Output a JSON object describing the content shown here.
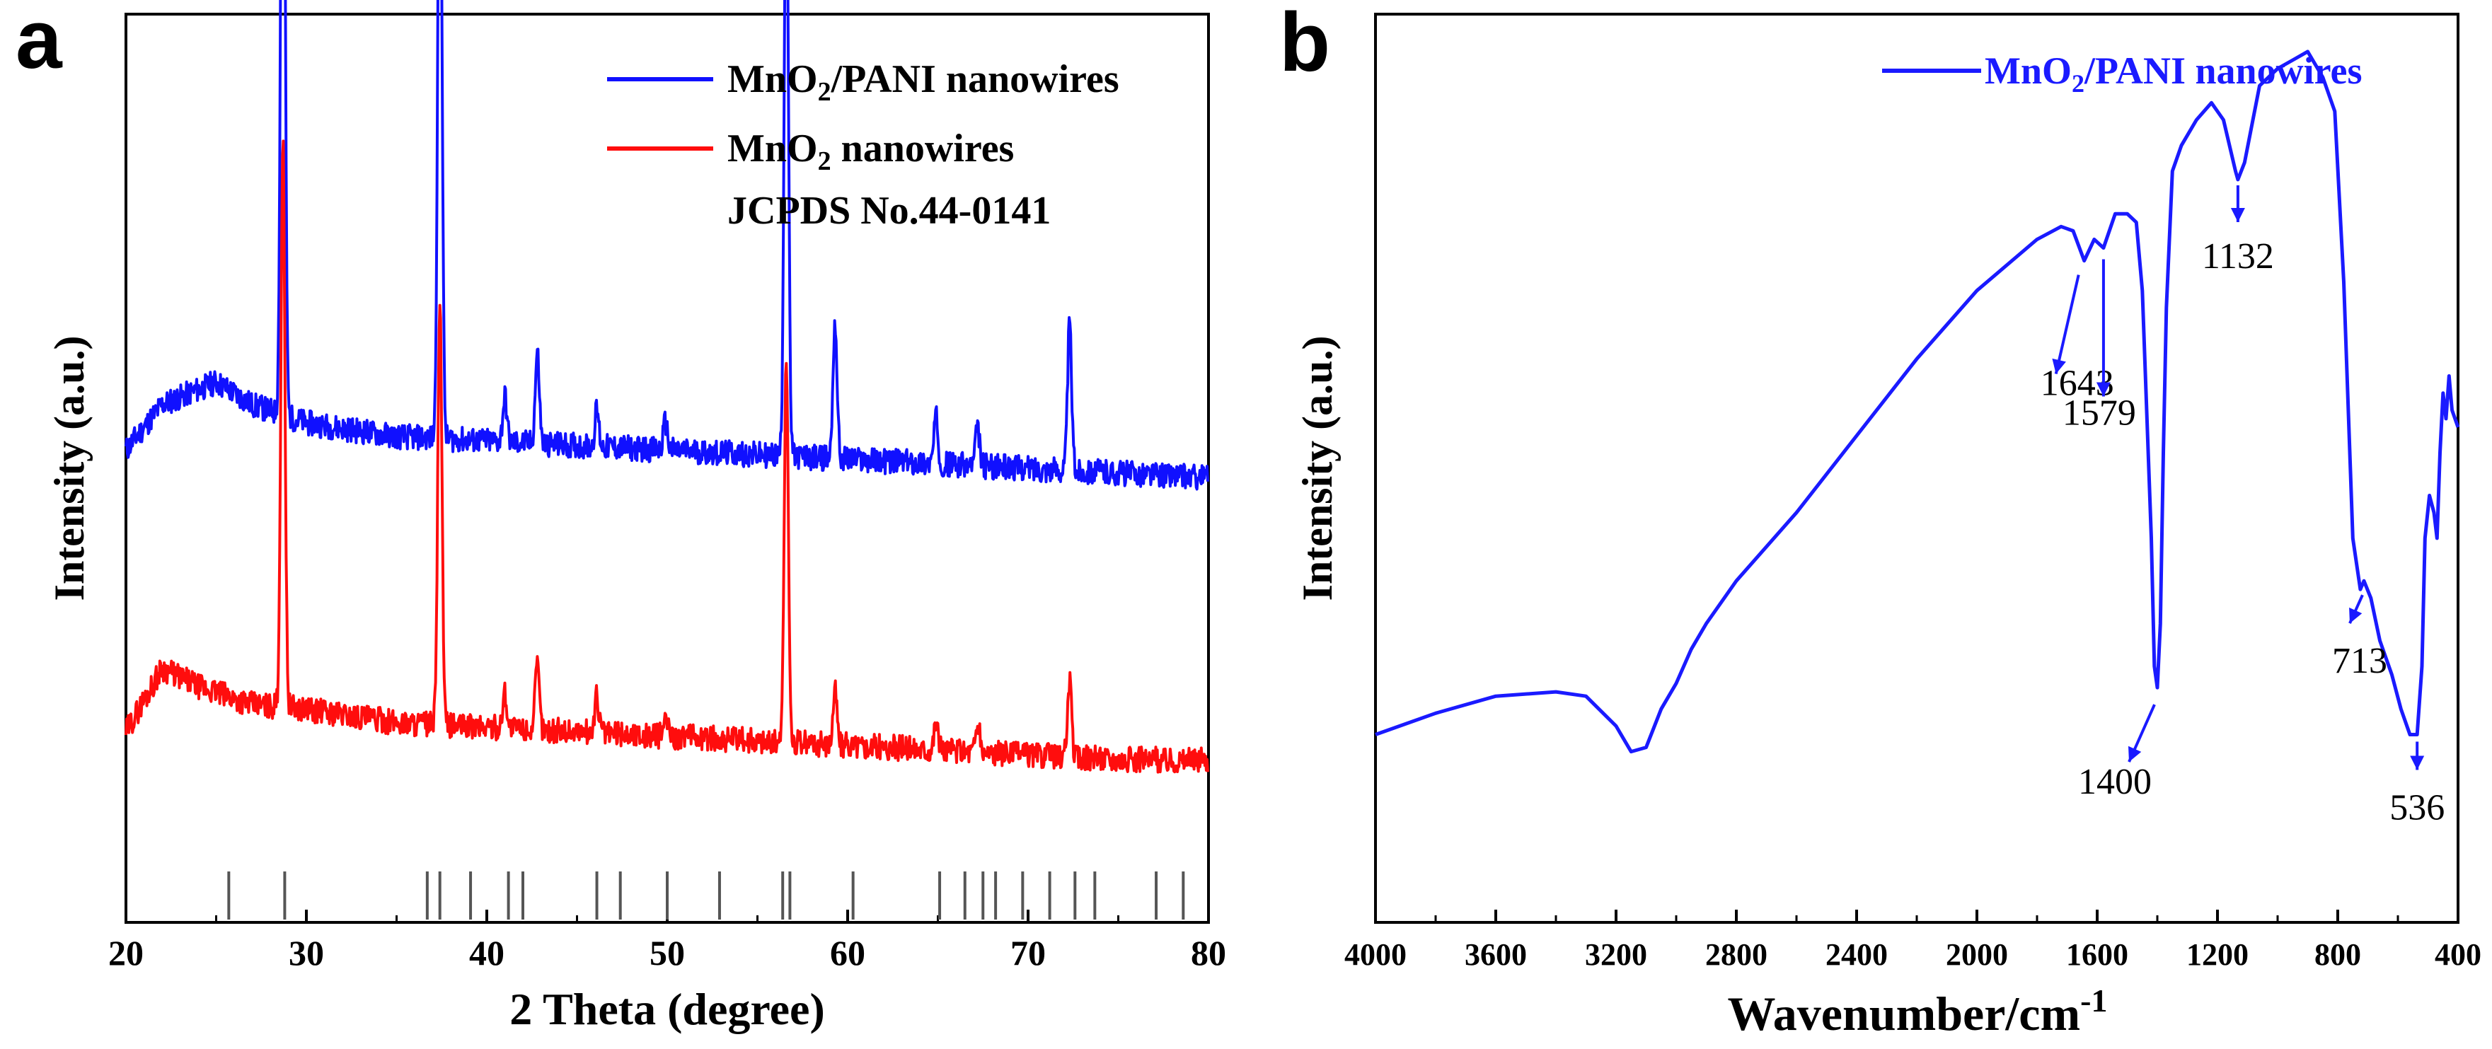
{
  "chart_data": [
    {
      "panel": "a",
      "type": "line",
      "title": "",
      "xlabel": "2 Theta (degree)",
      "ylabel": "Intensity (a.u.)",
      "xlim": [
        20,
        80
      ],
      "ylim": [
        0,
        1
      ],
      "x_ticks": [
        20,
        30,
        40,
        50,
        60,
        70,
        80
      ],
      "grid": false,
      "legend_position": "top-right",
      "series": [
        {
          "name": "MnO2/PANI nanowires",
          "legend_main": "MnO",
          "legend_sub": "2",
          "legend_tail": "/PANI nanowires",
          "color": "#1010ff",
          "baseline": [
            [
              20,
              0.52
            ],
            [
              22,
              0.57
            ],
            [
              25,
              0.595
            ],
            [
              27,
              0.57
            ],
            [
              30,
              0.55
            ],
            [
              35,
              0.535
            ],
            [
              40,
              0.53
            ],
            [
              45,
              0.525
            ],
            [
              50,
              0.52
            ],
            [
              55,
              0.515
            ],
            [
              60,
              0.51
            ],
            [
              65,
              0.505
            ],
            [
              70,
              0.5
            ],
            [
              75,
              0.495
            ],
            [
              80,
              0.49
            ]
          ],
          "peaks": [
            [
              28.7,
              0.96
            ],
            [
              37.4,
              0.78
            ],
            [
              41.0,
              0.05
            ],
            [
              42.8,
              0.1
            ],
            [
              46.1,
              0.04
            ],
            [
              49.9,
              0.03
            ],
            [
              56.6,
              0.7
            ],
            [
              59.3,
              0.15
            ],
            [
              64.9,
              0.05
            ],
            [
              67.2,
              0.04
            ],
            [
              72.3,
              0.16
            ]
          ]
        },
        {
          "name": "MnO2 nanowires",
          "legend_main": "MnO",
          "legend_sub": "2",
          "legend_tail": " nanowires",
          "color": "#ff0d0d",
          "baseline": [
            [
              20,
              0.21
            ],
            [
              22,
              0.28
            ],
            [
              24,
              0.26
            ],
            [
              27,
              0.24
            ],
            [
              30,
              0.235
            ],
            [
              35,
              0.22
            ],
            [
              40,
              0.215
            ],
            [
              45,
              0.21
            ],
            [
              50,
              0.205
            ],
            [
              55,
              0.2
            ],
            [
              60,
              0.195
            ],
            [
              65,
              0.19
            ],
            [
              70,
              0.185
            ],
            [
              75,
              0.18
            ],
            [
              80,
              0.178
            ]
          ],
          "peaks": [
            [
              28.7,
              0.62
            ],
            [
              37.4,
              0.47
            ],
            [
              41.0,
              0.04
            ],
            [
              42.8,
              0.07
            ],
            [
              46.1,
              0.04
            ],
            [
              49.9,
              0.02
            ],
            [
              56.6,
              0.42
            ],
            [
              59.3,
              0.06
            ],
            [
              64.9,
              0.03
            ],
            [
              67.2,
              0.03
            ],
            [
              72.3,
              0.08
            ]
          ]
        }
      ],
      "reference": {
        "name": "JCPDS No.44-0141",
        "positions": [
          25.7,
          28.8,
          36.7,
          37.4,
          39.1,
          41.2,
          42.0,
          46.1,
          47.4,
          50.0,
          52.9,
          56.4,
          56.8,
          60.3,
          65.1,
          66.5,
          67.5,
          68.2,
          69.7,
          71.2,
          72.6,
          73.7,
          77.1,
          78.6
        ]
      },
      "legend": {
        "series1_prefix": "MnO",
        "series1_sub": "2",
        "series1_suffix": "/PANI nanowires",
        "series2_prefix": "MnO",
        "series2_sub": "2",
        "series2_suffix": " nanowires",
        "reference_label": "JCPDS No.44-0141"
      }
    },
    {
      "panel": "b",
      "type": "line",
      "title": "",
      "xlabel_main": "Wavenumber/cm",
      "xlabel_sup": "-1",
      "ylabel": "Intensity (a.u.)",
      "xlim": [
        4000,
        400
      ],
      "x_reversed": true,
      "ylim": [
        0,
        1
      ],
      "x_ticks": [
        4000,
        3600,
        3200,
        2800,
        2400,
        2000,
        1600,
        1200,
        800,
        400
      ],
      "grid": false,
      "legend_position": "top-right",
      "legend": {
        "prefix": "MnO",
        "sub": "2",
        "suffix": "/PANI nanowires"
      },
      "series": [
        {
          "name": "MnO2/PANI nanowires",
          "color": "#1a1aff",
          "points": [
            [
              4000,
              0.22
            ],
            [
              3800,
              0.245
            ],
            [
              3600,
              0.265
            ],
            [
              3400,
              0.27
            ],
            [
              3300,
              0.265
            ],
            [
              3200,
              0.23
            ],
            [
              3150,
              0.2
            ],
            [
              3100,
              0.205
            ],
            [
              3050,
              0.25
            ],
            [
              3000,
              0.28
            ],
            [
              2950,
              0.32
            ],
            [
              2900,
              0.35
            ],
            [
              2800,
              0.4
            ],
            [
              2600,
              0.48
            ],
            [
              2400,
              0.57
            ],
            [
              2200,
              0.66
            ],
            [
              2000,
              0.74
            ],
            [
              1800,
              0.8
            ],
            [
              1720,
              0.815
            ],
            [
              1680,
              0.81
            ],
            [
              1643,
              0.775
            ],
            [
              1610,
              0.8
            ],
            [
              1579,
              0.79
            ],
            [
              1540,
              0.83
            ],
            [
              1500,
              0.83
            ],
            [
              1470,
              0.82
            ],
            [
              1450,
              0.74
            ],
            [
              1420,
              0.45
            ],
            [
              1410,
              0.3
            ],
            [
              1400,
              0.275
            ],
            [
              1390,
              0.35
            ],
            [
              1380,
              0.55
            ],
            [
              1370,
              0.72
            ],
            [
              1350,
              0.88
            ],
            [
              1320,
              0.91
            ],
            [
              1270,
              0.94
            ],
            [
              1220,
              0.96
            ],
            [
              1180,
              0.94
            ],
            [
              1140,
              0.88
            ],
            [
              1132,
              0.87
            ],
            [
              1110,
              0.89
            ],
            [
              1060,
              0.98
            ],
            [
              1000,
              1.0
            ],
            [
              950,
              1.01
            ],
            [
              900,
              1.02
            ],
            [
              850,
              0.99
            ],
            [
              810,
              0.95
            ],
            [
              780,
              0.75
            ],
            [
              750,
              0.45
            ],
            [
              725,
              0.39
            ],
            [
              713,
              0.4
            ],
            [
              690,
              0.38
            ],
            [
              660,
              0.33
            ],
            [
              620,
              0.29
            ],
            [
              590,
              0.25
            ],
            [
              560,
              0.22
            ],
            [
              536,
              0.22
            ],
            [
              520,
              0.3
            ],
            [
              510,
              0.45
            ],
            [
              495,
              0.5
            ],
            [
              480,
              0.48
            ],
            [
              470,
              0.45
            ],
            [
              460,
              0.55
            ],
            [
              450,
              0.62
            ],
            [
              440,
              0.59
            ],
            [
              430,
              0.64
            ],
            [
              420,
              0.6
            ],
            [
              400,
              0.58
            ]
          ]
        }
      ],
      "annotations": [
        {
          "label": "1643",
          "x": 1643
        },
        {
          "label": "1579",
          "x": 1579
        },
        {
          "label": "1400",
          "x": 1400
        },
        {
          "label": "1132",
          "x": 1132
        },
        {
          "label": "713",
          "x": 713
        },
        {
          "label": "536",
          "x": 536
        }
      ]
    }
  ],
  "panels": {
    "a_label": "a",
    "b_label": "b"
  }
}
